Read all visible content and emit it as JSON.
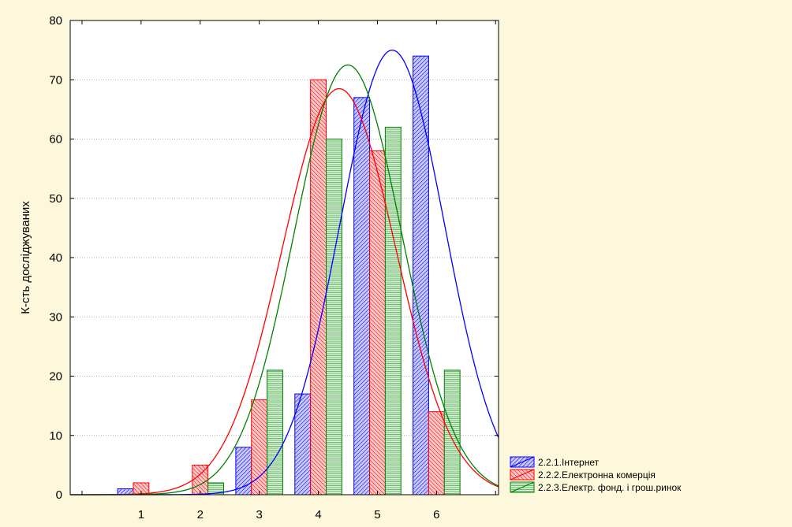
{
  "chart_data": {
    "type": "bar",
    "title": "",
    "xlabel": "",
    "ylabel": "К-сть досліджуваних",
    "categories": [
      "1",
      "2",
      "3",
      "4",
      "5",
      "6"
    ],
    "ylim": [
      0,
      80
    ],
    "yticks": [
      0,
      10,
      20,
      30,
      40,
      50,
      60,
      70,
      80
    ],
    "grid": "horizontal",
    "legend_position": "bottom-right",
    "series": [
      {
        "name": "2.2.1.Інтернет",
        "values": [
          1,
          0,
          8,
          17,
          67,
          74
        ],
        "color": "#0000ff",
        "fill": "#c8c8ff",
        "fit": {
          "type": "normal",
          "mean": 5.25,
          "peak": 75
        }
      },
      {
        "name": "2.2.2.Електронна комерція",
        "values": [
          2,
          5,
          16,
          70,
          58,
          14
        ],
        "color": "#ff0000",
        "fill": "#ffc8c8",
        "fit": {
          "type": "normal",
          "mean": 4.35,
          "peak": 68.5
        }
      },
      {
        "name": "2.2.3.Електр. фонд. і грош.ринок",
        "values": [
          0,
          2,
          21,
          60,
          62,
          21
        ],
        "color": "#008000",
        "fill": "#d8f0d8",
        "fit": {
          "type": "normal",
          "mean": 4.5,
          "peak": 72.5
        }
      }
    ]
  }
}
